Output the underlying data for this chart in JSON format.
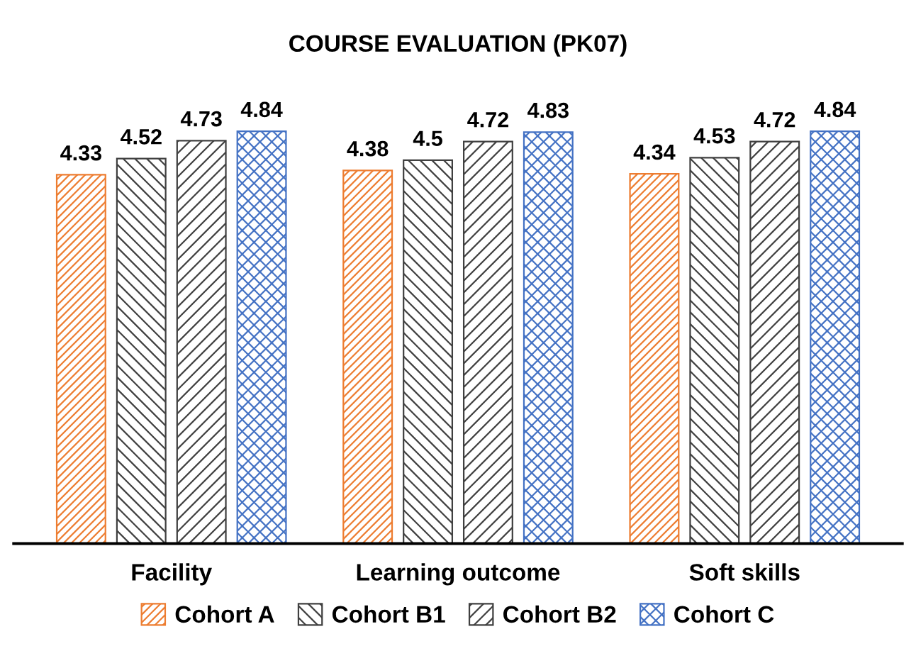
{
  "chart_data": {
    "type": "bar",
    "title": "COURSE EVALUATION (PK07)",
    "categories": [
      "Facility",
      "Learning outcome",
      "Soft skills"
    ],
    "series": [
      {
        "name": "Cohort A",
        "color": "#ed7d31",
        "values": [
          4.33,
          4.38,
          4.34
        ]
      },
      {
        "name": "Cohort B1",
        "color": "#404040",
        "values": [
          4.52,
          4.5,
          4.53
        ]
      },
      {
        "name": "Cohort B2",
        "color": "#404040",
        "values": [
          4.73,
          4.72,
          4.72
        ]
      },
      {
        "name": "Cohort C",
        "color": "#4472c4",
        "values": [
          4.84,
          4.83,
          4.84
        ]
      }
    ],
    "data_labels": true,
    "legend": "bottom",
    "grid": false,
    "tick_labels": "x"
  }
}
